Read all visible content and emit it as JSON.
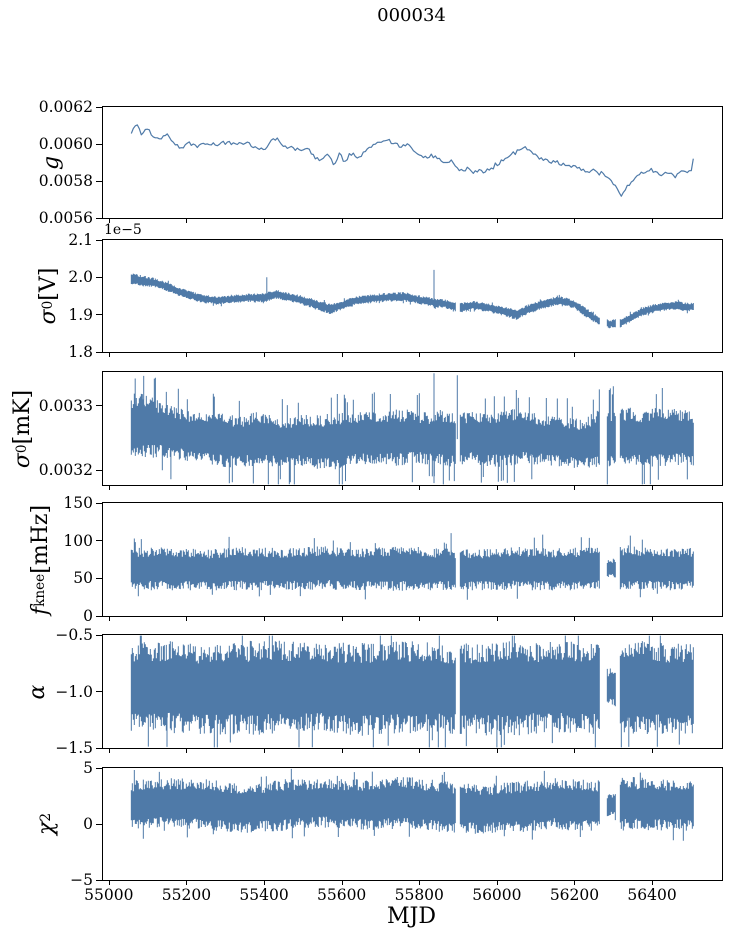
{
  "title": "000034",
  "accent_color": "#4f7aa8",
  "chart_data": {
    "type": "line",
    "title": "000034",
    "xlabel": "MJD",
    "xlim": [
      54985,
      56575
    ],
    "xticks": [
      {
        "v": 55000,
        "label": "55000"
      },
      {
        "v": 55200,
        "label": "55200"
      },
      {
        "v": 55400,
        "label": "55400"
      },
      {
        "v": 55600,
        "label": "55600"
      },
      {
        "v": 55800,
        "label": "55800"
      },
      {
        "v": 56000,
        "label": "56000"
      },
      {
        "v": 56200,
        "label": "56200"
      },
      {
        "v": 56400,
        "label": "56400"
      }
    ],
    "line_color": "#4f7aa8",
    "grid": false,
    "panels": [
      {
        "id": "g",
        "ylabel": {
          "sym": "g",
          "sub": "",
          "sup": "",
          "unit": ""
        },
        "style": "line",
        "ylim": [
          0.0056,
          0.0062
        ],
        "yticks": [
          {
            "v": 0.0056,
            "label": "0.0056"
          },
          {
            "v": 0.0058,
            "label": "0.0058"
          },
          {
            "v": 0.006,
            "label": "0.0060"
          },
          {
            "v": 0.0062,
            "label": "0.0062"
          }
        ],
        "seed": 12,
        "jitter": 1.6e-05,
        "x": [
          55058,
          55070,
          55085,
          55100,
          55115,
          55135,
          55150,
          55165,
          55185,
          55205,
          55230,
          55255,
          55280,
          55305,
          55330,
          55355,
          55380,
          55400,
          55420,
          55435,
          55450,
          55470,
          55490,
          55510,
          55530,
          55550,
          55565,
          55580,
          55595,
          55605,
          55620,
          55640,
          55665,
          55690,
          55710,
          55730,
          55750,
          55770,
          55790,
          55810,
          55830,
          55850,
          55865,
          55880,
          55895,
          55910,
          55925,
          55940,
          55955,
          55970,
          55985,
          56000,
          56020,
          56040,
          56060,
          56075,
          56090,
          56110,
          56130,
          56150,
          56170,
          56190,
          56210,
          56230,
          56250,
          56270,
          56290,
          56305,
          56320,
          56330,
          56345,
          56360,
          56380,
          56400,
          56420,
          56440,
          56460,
          56480,
          56500,
          56508
        ],
        "y": [
          0.00606,
          0.00611,
          0.00606,
          0.00608,
          0.00604,
          0.00603,
          0.00606,
          0.00601,
          0.00598,
          0.00601,
          0.00599,
          0.00601,
          0.00599,
          0.00601,
          0.006,
          0.00601,
          0.00598,
          0.00597,
          0.00602,
          0.00603,
          0.00599,
          0.00598,
          0.00597,
          0.00598,
          0.00593,
          0.00591,
          0.00595,
          0.00588,
          0.00596,
          0.00589,
          0.00595,
          0.00593,
          0.00597,
          0.006,
          0.00602,
          0.00601,
          0.00598,
          0.006,
          0.00596,
          0.00592,
          0.00594,
          0.00592,
          0.00589,
          0.00591,
          0.00588,
          0.00585,
          0.00587,
          0.00584,
          0.00586,
          0.00585,
          0.00587,
          0.00589,
          0.00592,
          0.00595,
          0.00597,
          0.00598,
          0.00596,
          0.00592,
          0.00591,
          0.0059,
          0.00589,
          0.00588,
          0.00587,
          0.00585,
          0.00586,
          0.00584,
          0.00581,
          0.00577,
          0.00572,
          0.00576,
          0.00579,
          0.00582,
          0.00584,
          0.00586,
          0.00583,
          0.00585,
          0.00583,
          0.00586,
          0.00585,
          0.00593
        ]
      },
      {
        "id": "sigma0-v",
        "ylabel": {
          "sym": "σ",
          "sub": "0",
          "sup": "",
          "unit": " [V]"
        },
        "offset_text": "1e−5",
        "style": "band",
        "ylim": [
          1.8,
          2.1
        ],
        "yticks": [
          {
            "v": 1.8,
            "label": "1.8"
          },
          {
            "v": 1.9,
            "label": "1.9"
          },
          {
            "v": 2.0,
            "label": "2.0"
          },
          {
            "v": 2.1,
            "label": "2.1"
          }
        ],
        "seed": 21,
        "spike_p": 0.02,
        "spike_s": 1.2,
        "x": [
          55058,
          55090,
          55120,
          55150,
          55180,
          55210,
          55240,
          55280,
          55320,
          55360,
          55400,
          55430,
          55460,
          55500,
          55540,
          55570,
          55600,
          55640,
          55680,
          55720,
          55760,
          55800,
          55840,
          55870,
          55900,
          55940,
          55980,
          56020,
          56050,
          56080,
          56120,
          56160,
          56200,
          56230,
          56260,
          56290,
          56320,
          56350,
          56380,
          56420,
          56460,
          56490,
          56508
        ],
        "center": [
          1.995,
          1.99,
          1.985,
          1.975,
          1.962,
          1.952,
          1.943,
          1.938,
          1.942,
          1.945,
          1.945,
          1.955,
          1.948,
          1.938,
          1.925,
          1.915,
          1.925,
          1.938,
          1.943,
          1.947,
          1.948,
          1.94,
          1.932,
          1.928,
          1.917,
          1.925,
          1.918,
          1.908,
          1.9,
          1.915,
          1.928,
          1.938,
          1.928,
          1.905,
          1.885,
          1.875,
          1.878,
          1.895,
          1.91,
          1.92,
          1.925,
          1.92,
          1.922
        ],
        "amp": [
          0.017,
          0.015,
          0.013,
          0.013,
          0.012,
          0.012,
          0.012,
          0.012,
          0.012,
          0.012,
          0.013,
          0.013,
          0.012,
          0.013,
          0.014,
          0.015,
          0.013,
          0.012,
          0.012,
          0.012,
          0.013,
          0.012,
          0.012,
          0.012,
          0.014,
          0.012,
          0.012,
          0.013,
          0.014,
          0.013,
          0.013,
          0.012,
          0.012,
          0.013,
          0.012,
          0.012,
          0.012,
          0.012,
          0.012,
          0.012,
          0.012,
          0.012,
          0.012
        ],
        "gaps": [
          [
            55893,
            55904
          ],
          [
            56266,
            56283
          ],
          [
            56306,
            56318
          ]
        ],
        "thin": [],
        "spikes": [
          {
            "x": 55407,
            "hi": 2.0
          },
          {
            "x": 55838,
            "hi": 2.02
          }
        ]
      },
      {
        "id": "sigma0-mk",
        "ylabel": {
          "sym": "σ",
          "sub": "0",
          "sup": "",
          "unit": " [mK]"
        },
        "style": "band",
        "ylim": [
          0.003177,
          0.003352
        ],
        "yticks": [
          {
            "v": 0.0032,
            "label": "0.0032"
          },
          {
            "v": 0.0033,
            "label": "0.0033"
          }
        ],
        "seed": 33,
        "spike_p": 0.06,
        "spike_s": 1.5,
        "x": [
          55058,
          55080,
          55110,
          55140,
          55180,
          55220,
          55260,
          55300,
          55340,
          55380,
          55420,
          55460,
          55500,
          55540,
          55580,
          55620,
          55660,
          55700,
          55740,
          55780,
          55820,
          55860,
          55900,
          55940,
          55980,
          56020,
          56060,
          56100,
          56140,
          56180,
          56220,
          56260,
          56300,
          56340,
          56380,
          56420,
          56460,
          56508
        ],
        "center": [
          0.003268,
          0.00327,
          0.003266,
          0.003262,
          0.003256,
          0.003252,
          0.003249,
          0.003246,
          0.003244,
          0.003248,
          0.003245,
          0.003243,
          0.003246,
          0.003243,
          0.003245,
          0.003248,
          0.00325,
          0.003252,
          0.00325,
          0.003252,
          0.003249,
          0.00325,
          0.003248,
          0.00325,
          0.003247,
          0.00325,
          0.003252,
          0.003248,
          0.003245,
          0.003243,
          0.003241,
          0.003248,
          0.00325,
          0.003252,
          0.003249,
          0.003251,
          0.003252,
          0.003249
        ],
        "amp": [
          5e-05,
          5.2e-05,
          4.7e-05,
          4.2e-05,
          4e-05,
          3.9e-05,
          4e-05,
          4.2e-05,
          3.9e-05,
          4.2e-05,
          4e-05,
          3.8e-05,
          4e-05,
          4.2e-05,
          4.5e-05,
          4e-05,
          4.2e-05,
          4.1e-05,
          4.5e-05,
          4.2e-05,
          4e-05,
          4.5e-05,
          4.2e-05,
          4e-05,
          4.2e-05,
          4.5e-05,
          4.2e-05,
          4e-05,
          3.8e-05,
          4e-05,
          3.8e-05,
          4.5e-05,
          4.8e-05,
          4.5e-05,
          4.5e-05,
          4.6e-05,
          4.4e-05,
          4.2e-05
        ],
        "gaps": [
          [
            55893,
            55904
          ],
          [
            56266,
            56283
          ],
          [
            56306,
            56318
          ]
        ],
        "thin": [],
        "spikes": [
          {
            "x": 55838,
            "hi": 0.00335,
            "lo": 0.00318
          },
          {
            "x": 55898,
            "hi": 0.003347
          },
          {
            "x": 55068,
            "hi": 0.003342
          },
          {
            "x": 55090,
            "hi": 0.003346
          },
          {
            "x": 55120,
            "hi": 0.003343
          },
          {
            "x": 55160,
            "lo": 0.003186
          },
          {
            "x": 55610,
            "lo": 0.003183
          },
          {
            "x": 56090,
            "lo": 0.003186
          }
        ]
      },
      {
        "id": "fknee",
        "ylabel": {
          "sym": "f",
          "sub": "knee",
          "sup": "",
          "unit": " [mHz]"
        },
        "style": "band",
        "ylim": [
          0,
          150
        ],
        "yticks": [
          {
            "v": 0,
            "label": "0"
          },
          {
            "v": 50,
            "label": "50"
          },
          {
            "v": 100,
            "label": "100"
          },
          {
            "v": 150,
            "label": "150"
          }
        ],
        "seed": 44,
        "spike_p": 0.025,
        "spike_s": 1.25,
        "x": [
          55058,
          55150,
          55250,
          55350,
          55450,
          55550,
          55650,
          55750,
          55850,
          55950,
          56050,
          56150,
          56250,
          56350,
          56450,
          56508
        ],
        "center": [
          62,
          63,
          61,
          63,
          62,
          64,
          62,
          63,
          62,
          61,
          63,
          62,
          63,
          64,
          62,
          63
        ],
        "amp": [
          28,
          29,
          27,
          29,
          28,
          29,
          28,
          30,
          28,
          27,
          29,
          28,
          29,
          30,
          28,
          28
        ],
        "gaps": [
          [
            55893,
            55904
          ],
          [
            56266,
            56283
          ],
          [
            56306,
            56318
          ]
        ],
        "thin": [
          [
            56283,
            56306
          ]
        ],
        "spikes": [
          {
            "x": 55310,
            "hi": 105
          },
          {
            "x": 55882,
            "hi": 110
          },
          {
            "x": 56118,
            "hi": 108
          }
        ]
      },
      {
        "id": "alpha",
        "ylabel": {
          "sym": "α",
          "sub": "",
          "sup": "",
          "unit": ""
        },
        "style": "band",
        "ylim": [
          -1.5,
          -0.5
        ],
        "yticks": [
          {
            "v": -0.5,
            "label": "−0.5"
          },
          {
            "v": -1.0,
            "label": "−1.0"
          },
          {
            "v": -1.5,
            "label": "−1.5"
          }
        ],
        "seed": 55,
        "spike_p": 0.035,
        "spike_s": 1.25,
        "x": [
          55058,
          55150,
          55250,
          55350,
          55450,
          55550,
          55650,
          55750,
          55850,
          55950,
          56050,
          56150,
          56250,
          56350,
          56450,
          56508
        ],
        "center": [
          -0.97,
          -0.96,
          -0.98,
          -0.97,
          -0.96,
          -0.97,
          -0.98,
          -0.96,
          -0.97,
          -0.98,
          -0.97,
          -0.96,
          -0.97,
          -0.96,
          -0.97,
          -0.97
        ],
        "amp": [
          0.4,
          0.41,
          0.4,
          0.42,
          0.41,
          0.4,
          0.42,
          0.41,
          0.4,
          0.41,
          0.42,
          0.4,
          0.41,
          0.42,
          0.41,
          0.4
        ],
        "gaps": [
          [
            55893,
            55904
          ],
          [
            56266,
            56283
          ],
          [
            56306,
            56318
          ]
        ],
        "thin": [
          [
            56283,
            56306
          ]
        ],
        "spikes": [
          {
            "x": 55150,
            "lo": -1.49
          },
          {
            "x": 55490,
            "lo": -1.5
          },
          {
            "x": 55720,
            "lo": -1.48
          },
          {
            "x": 56000,
            "lo": -1.5
          },
          {
            "x": 56340,
            "lo": -1.49
          },
          {
            "x": 56470,
            "lo": -1.47
          }
        ]
      },
      {
        "id": "chi2",
        "ylabel": {
          "sym": "χ",
          "sub": "",
          "sup": "2",
          "unit": ""
        },
        "style": "band",
        "ylim": [
          -5,
          5
        ],
        "yticks": [
          {
            "v": -5,
            "label": "−5"
          },
          {
            "v": 0,
            "label": "0"
          },
          {
            "v": 5,
            "label": "5"
          }
        ],
        "seed": 66,
        "spike_p": 0.025,
        "spike_s": 1.2,
        "x": [
          55058,
          55150,
          55250,
          55350,
          55450,
          55550,
          55650,
          55750,
          55850,
          55950,
          56050,
          56150,
          56250,
          56350,
          56450,
          56508
        ],
        "center": [
          1.6,
          1.9,
          1.7,
          1.4,
          1.7,
          1.9,
          1.7,
          1.9,
          1.6,
          1.3,
          1.5,
          1.8,
          1.6,
          1.8,
          1.7,
          1.7
        ],
        "amp": [
          2.3,
          2.2,
          2.3,
          2.2,
          2.3,
          2.2,
          2.3,
          2.4,
          2.3,
          2.2,
          2.3,
          2.3,
          2.3,
          2.4,
          2.3,
          2.3
        ],
        "gaps": [
          [
            55893,
            55904
          ],
          [
            56266,
            56283
          ],
          [
            56306,
            56318
          ]
        ],
        "thin": [
          [
            56283,
            56306
          ]
        ],
        "spikes": []
      }
    ]
  }
}
